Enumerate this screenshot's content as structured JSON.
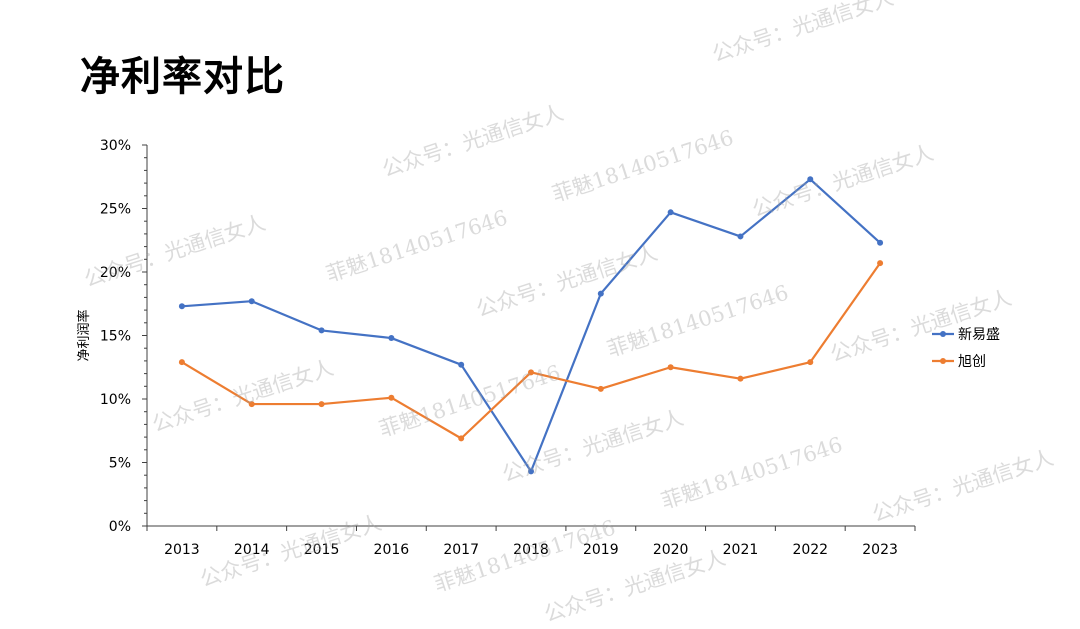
{
  "page": {
    "title": "净利率对比"
  },
  "watermarks": {
    "account": "公众号：光通信女人",
    "contact": "菲魅18140517646"
  },
  "colors": {
    "series_blue": "#4472C4",
    "series_orange": "#ED7D31",
    "axis": "#404040"
  },
  "chart_data": {
    "type": "line",
    "title": "",
    "xlabel": "",
    "ylabel": "净利润率",
    "x": [
      "2013",
      "2014",
      "2015",
      "2016",
      "2017",
      "2018",
      "2019",
      "2020",
      "2021",
      "2022",
      "2023"
    ],
    "ylim": [
      0,
      30
    ],
    "yticks": [
      0,
      5,
      10,
      15,
      20,
      25,
      30
    ],
    "ytick_labels": [
      "0%",
      "5%",
      "10%",
      "15%",
      "20%",
      "25%",
      "30%"
    ],
    "grid": false,
    "legend_position": "right",
    "series": [
      {
        "name": "新易盛",
        "color": "#4472C4",
        "values": [
          17.3,
          17.7,
          15.4,
          14.8,
          12.7,
          4.3,
          18.3,
          24.7,
          22.8,
          27.3,
          22.3
        ]
      },
      {
        "name": "旭创",
        "color": "#ED7D31",
        "values": [
          12.9,
          9.6,
          9.6,
          10.1,
          6.9,
          12.1,
          10.8,
          12.5,
          11.6,
          12.9,
          20.7
        ]
      }
    ]
  }
}
